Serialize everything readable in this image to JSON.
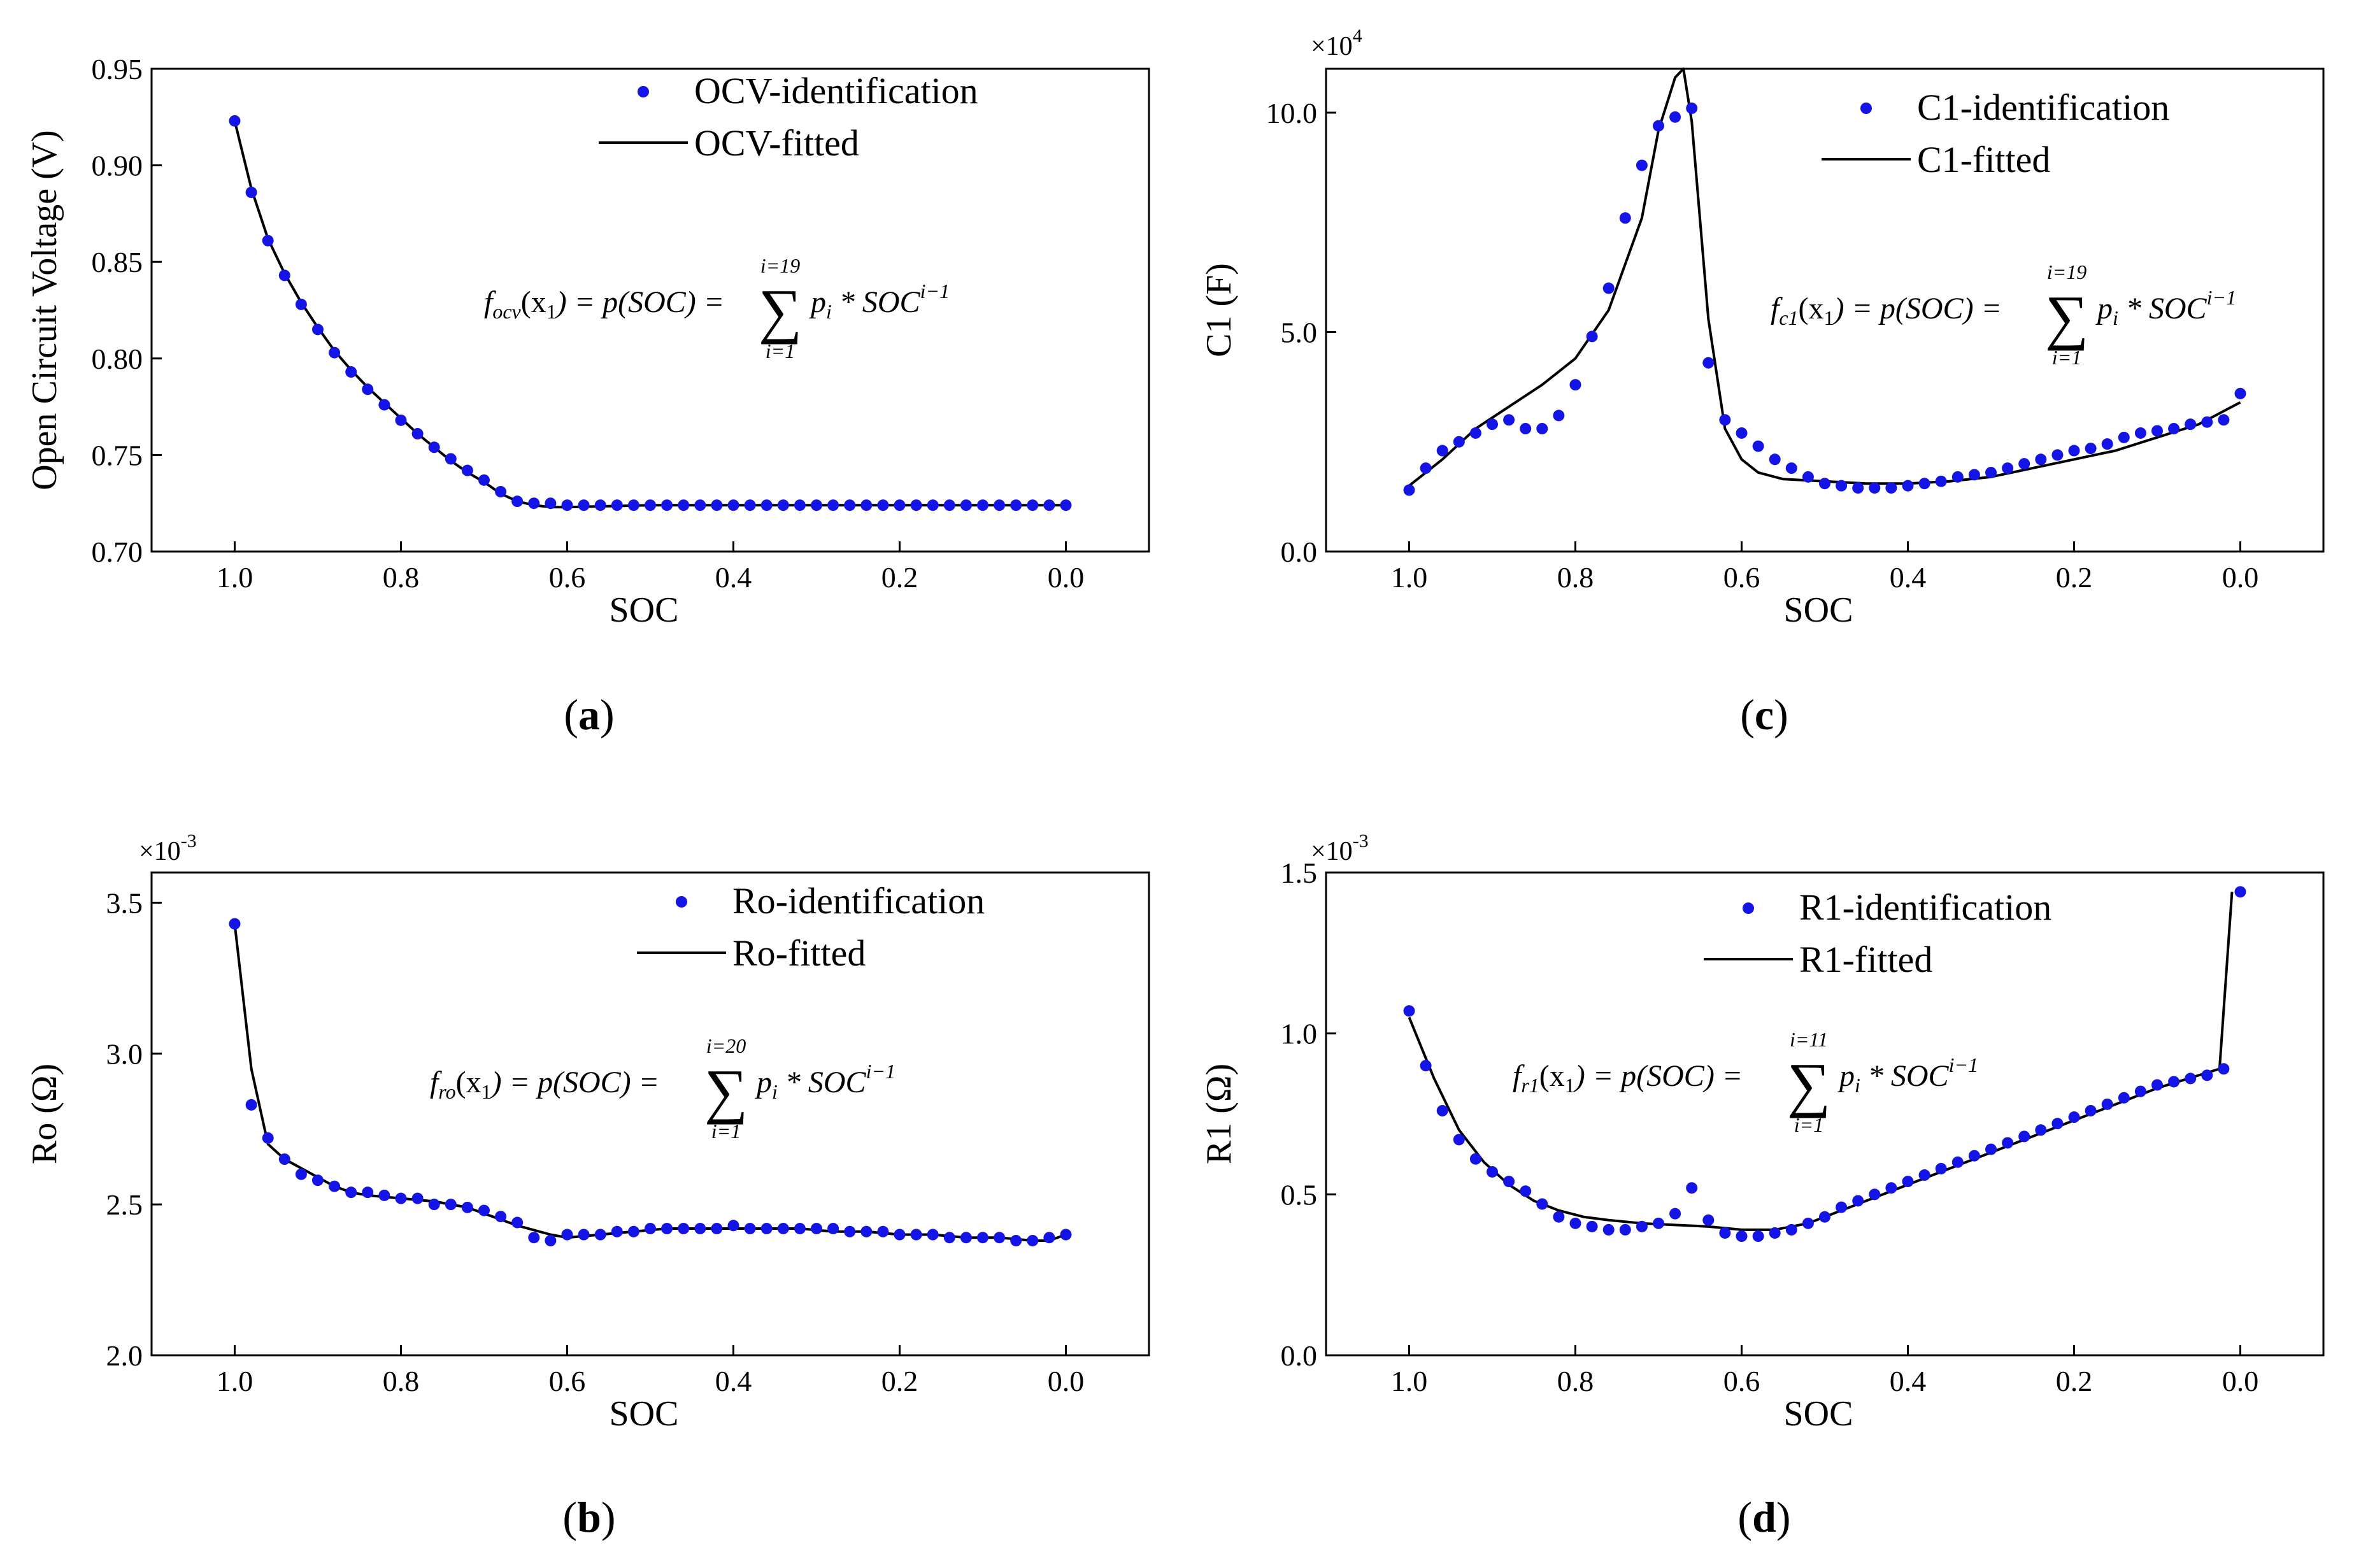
{
  "chart_data": [
    {
      "id": "a",
      "type": "scatter",
      "panel_label": "a",
      "xlabel": "SOC",
      "ylabel": "Open Circuit Voltage (V)",
      "xlim": [
        1.1,
        -0.1
      ],
      "ylim": [
        0.7,
        0.95
      ],
      "xticks": [
        1.0,
        0.8,
        0.6,
        0.4,
        0.2,
        0.0
      ],
      "xtick_labels": [
        "1.0",
        "0.8",
        "0.6",
        "0.4",
        "0.2",
        "0.0"
      ],
      "yticks": [
        0.7,
        0.75,
        0.8,
        0.85,
        0.9,
        0.95
      ],
      "ytick_labels": [
        "0.70",
        "0.75",
        "0.80",
        "0.85",
        "0.90",
        "0.95"
      ],
      "multiplier": "",
      "legend": [
        "OCV-identification",
        "OCV-fitted"
      ],
      "equation": {
        "f": "f",
        "sub": "ocv",
        "arg": "(x",
        "argsub": "1",
        "rhs": ") = p(SOC) =",
        "top": "i=19",
        "bottom": "i=1",
        "term": "p",
        "termsub": "i",
        "tail": " * SOC",
        "exp": "i−1"
      },
      "series": [
        {
          "name": "OCV-identification",
          "kind": "points",
          "x": [
            1.0,
            0.98,
            0.96,
            0.94,
            0.92,
            0.9,
            0.88,
            0.86,
            0.84,
            0.82,
            0.8,
            0.78,
            0.76,
            0.74,
            0.72,
            0.7,
            0.68,
            0.66,
            0.64,
            0.62,
            0.6,
            0.58,
            0.56,
            0.54,
            0.52,
            0.5,
            0.48,
            0.46,
            0.44,
            0.42,
            0.4,
            0.38,
            0.36,
            0.34,
            0.32,
            0.3,
            0.28,
            0.26,
            0.24,
            0.22,
            0.2,
            0.18,
            0.16,
            0.14,
            0.12,
            0.1,
            0.08,
            0.06,
            0.04,
            0.02,
            0.0
          ],
          "y": [
            0.923,
            0.886,
            0.861,
            0.843,
            0.828,
            0.815,
            0.803,
            0.793,
            0.784,
            0.776,
            0.768,
            0.761,
            0.754,
            0.748,
            0.742,
            0.737,
            0.731,
            0.726,
            0.725,
            0.725,
            0.724,
            0.724,
            0.724,
            0.724,
            0.724,
            0.724,
            0.724,
            0.724,
            0.724,
            0.724,
            0.724,
            0.724,
            0.724,
            0.724,
            0.724,
            0.724,
            0.724,
            0.724,
            0.724,
            0.724,
            0.724,
            0.724,
            0.724,
            0.724,
            0.724,
            0.724,
            0.724,
            0.724,
            0.724,
            0.724,
            0.724
          ]
        },
        {
          "name": "OCV-fitted",
          "kind": "line",
          "x": [
            1.0,
            0.98,
            0.96,
            0.94,
            0.92,
            0.9,
            0.88,
            0.86,
            0.84,
            0.82,
            0.8,
            0.78,
            0.76,
            0.74,
            0.72,
            0.7,
            0.68,
            0.66,
            0.64,
            0.62,
            0.6,
            0.5,
            0.4,
            0.3,
            0.2,
            0.1,
            0.0
          ],
          "y": [
            0.923,
            0.888,
            0.862,
            0.844,
            0.829,
            0.816,
            0.804,
            0.794,
            0.785,
            0.777,
            0.769,
            0.761,
            0.754,
            0.747,
            0.741,
            0.736,
            0.73,
            0.726,
            0.724,
            0.723,
            0.723,
            0.724,
            0.724,
            0.724,
            0.724,
            0.724,
            0.724
          ]
        }
      ]
    },
    {
      "id": "c",
      "type": "scatter",
      "panel_label": "c",
      "xlabel": "SOC",
      "ylabel": "C1 (F)",
      "xlim": [
        1.1,
        -0.1
      ],
      "ylim": [
        0,
        11
      ],
      "xticks": [
        1.0,
        0.8,
        0.6,
        0.4,
        0.2,
        0.0
      ],
      "xtick_labels": [
        "1.0",
        "0.8",
        "0.6",
        "0.4",
        "0.2",
        "0.0"
      ],
      "yticks": [
        0,
        5,
        10
      ],
      "ytick_labels": [
        "0.0",
        "5.0",
        "10.0"
      ],
      "multiplier": "×10",
      "multiplier_exp": "4",
      "legend": [
        "C1-identification",
        "C1-fitted"
      ],
      "equation": {
        "f": "f",
        "sub": "c1",
        "arg": "(x",
        "argsub": "1",
        "rhs": ") = p(SOC) =",
        "top": "i=19",
        "bottom": "i=1",
        "term": "p",
        "termsub": "i",
        "tail": " * SOC",
        "exp": "i−1"
      },
      "series": [
        {
          "name": "C1-identification",
          "kind": "points",
          "x": [
            1.0,
            0.98,
            0.96,
            0.94,
            0.92,
            0.9,
            0.88,
            0.86,
            0.84,
            0.82,
            0.8,
            0.78,
            0.76,
            0.74,
            0.72,
            0.7,
            0.68,
            0.66,
            0.64,
            0.62,
            0.6,
            0.58,
            0.56,
            0.54,
            0.52,
            0.5,
            0.48,
            0.46,
            0.44,
            0.42,
            0.4,
            0.38,
            0.36,
            0.34,
            0.32,
            0.3,
            0.28,
            0.26,
            0.24,
            0.22,
            0.2,
            0.18,
            0.16,
            0.14,
            0.12,
            0.1,
            0.08,
            0.06,
            0.04,
            0.02,
            0.0
          ],
          "y": [
            1.4,
            1.9,
            2.3,
            2.5,
            2.7,
            2.9,
            3.0,
            2.8,
            2.8,
            3.1,
            3.8,
            4.9,
            6.0,
            7.6,
            8.8,
            9.7,
            9.9,
            10.1,
            4.3,
            3.0,
            2.7,
            2.4,
            2.1,
            1.9,
            1.7,
            1.55,
            1.5,
            1.45,
            1.45,
            1.45,
            1.5,
            1.55,
            1.6,
            1.7,
            1.75,
            1.8,
            1.9,
            2.0,
            2.1,
            2.2,
            2.3,
            2.35,
            2.45,
            2.6,
            2.7,
            2.75,
            2.8,
            2.9,
            2.95,
            3.0,
            3.6
          ]
        },
        {
          "name": "C1-fitted",
          "kind": "line",
          "x": [
            1.0,
            0.96,
            0.92,
            0.88,
            0.84,
            0.8,
            0.76,
            0.72,
            0.7,
            0.68,
            0.67,
            0.66,
            0.64,
            0.62,
            0.6,
            0.58,
            0.55,
            0.5,
            0.45,
            0.4,
            0.35,
            0.3,
            0.25,
            0.2,
            0.15,
            0.1,
            0.05,
            0.02,
            0.0
          ],
          "y": [
            1.5,
            2.1,
            2.8,
            3.3,
            3.8,
            4.4,
            5.5,
            7.6,
            9.6,
            10.8,
            11.0,
            9.8,
            5.3,
            2.8,
            2.1,
            1.8,
            1.65,
            1.6,
            1.55,
            1.55,
            1.6,
            1.7,
            1.9,
            2.1,
            2.3,
            2.6,
            2.9,
            3.2,
            3.4
          ]
        }
      ]
    },
    {
      "id": "b",
      "type": "scatter",
      "panel_label": "b",
      "xlabel": "SOC",
      "ylabel": "Ro (Ω)",
      "xlim": [
        1.1,
        -0.1
      ],
      "ylim": [
        2.0,
        3.6
      ],
      "xticks": [
        1.0,
        0.8,
        0.6,
        0.4,
        0.2,
        0.0
      ],
      "xtick_labels": [
        "1.0",
        "0.8",
        "0.6",
        "0.4",
        "0.2",
        "0.0"
      ],
      "yticks": [
        2.0,
        2.5,
        3.0,
        3.5
      ],
      "ytick_labels": [
        "2.0",
        "2.5",
        "3.0",
        "3.5"
      ],
      "multiplier": "×10",
      "multiplier_exp": "-3",
      "legend": [
        "Ro-identification",
        "Ro-fitted"
      ],
      "equation": {
        "f": "f",
        "sub": "ro",
        "arg": "(x",
        "argsub": "1",
        "rhs": ") = p(SOC) =",
        "top": "i=20",
        "bottom": "i=1",
        "term": "p",
        "termsub": "i",
        "tail": " * SOC",
        "exp": "i−1"
      },
      "series": [
        {
          "name": "Ro-identification",
          "kind": "points",
          "x": [
            1.0,
            0.98,
            0.96,
            0.94,
            0.92,
            0.9,
            0.88,
            0.86,
            0.84,
            0.82,
            0.8,
            0.78,
            0.76,
            0.74,
            0.72,
            0.7,
            0.68,
            0.66,
            0.64,
            0.62,
            0.6,
            0.58,
            0.56,
            0.54,
            0.52,
            0.5,
            0.48,
            0.46,
            0.44,
            0.42,
            0.4,
            0.38,
            0.36,
            0.34,
            0.32,
            0.3,
            0.28,
            0.26,
            0.24,
            0.22,
            0.2,
            0.18,
            0.16,
            0.14,
            0.12,
            0.1,
            0.08,
            0.06,
            0.04,
            0.02,
            0.0
          ],
          "y": [
            3.43,
            2.83,
            2.72,
            2.65,
            2.6,
            2.58,
            2.56,
            2.54,
            2.54,
            2.53,
            2.52,
            2.52,
            2.5,
            2.5,
            2.49,
            2.48,
            2.46,
            2.44,
            2.39,
            2.38,
            2.4,
            2.4,
            2.4,
            2.41,
            2.41,
            2.42,
            2.42,
            2.42,
            2.42,
            2.42,
            2.43,
            2.42,
            2.42,
            2.42,
            2.42,
            2.42,
            2.42,
            2.41,
            2.41,
            2.41,
            2.4,
            2.4,
            2.4,
            2.39,
            2.39,
            2.39,
            2.39,
            2.38,
            2.38,
            2.39,
            2.4
          ]
        },
        {
          "name": "Ro-fitted",
          "kind": "line",
          "x": [
            1.0,
            0.98,
            0.96,
            0.94,
            0.92,
            0.9,
            0.88,
            0.86,
            0.84,
            0.8,
            0.76,
            0.72,
            0.7,
            0.66,
            0.62,
            0.6,
            0.56,
            0.52,
            0.48,
            0.44,
            0.4,
            0.36,
            0.32,
            0.28,
            0.24,
            0.2,
            0.16,
            0.12,
            0.08,
            0.04,
            0.02,
            0.0
          ],
          "y": [
            3.43,
            2.95,
            2.7,
            2.65,
            2.62,
            2.59,
            2.56,
            2.54,
            2.53,
            2.52,
            2.51,
            2.49,
            2.47,
            2.43,
            2.4,
            2.39,
            2.4,
            2.41,
            2.42,
            2.42,
            2.42,
            2.42,
            2.42,
            2.41,
            2.41,
            2.4,
            2.4,
            2.39,
            2.39,
            2.38,
            2.38,
            2.4
          ]
        }
      ]
    },
    {
      "id": "d",
      "type": "scatter",
      "panel_label": "d",
      "xlabel": "SOC",
      "ylabel": "R1 (Ω)",
      "xlim": [
        1.1,
        -0.1
      ],
      "ylim": [
        0,
        1.5
      ],
      "xticks": [
        1.0,
        0.8,
        0.6,
        0.4,
        0.2,
        0.0
      ],
      "xtick_labels": [
        "1.0",
        "0.8",
        "0.6",
        "0.4",
        "0.2",
        "0.0"
      ],
      "yticks": [
        0,
        0.5,
        1.0,
        1.5
      ],
      "ytick_labels": [
        "0.0",
        "0.5",
        "1.0",
        "1.5"
      ],
      "multiplier": "×10",
      "multiplier_exp": "-3",
      "legend": [
        "R1-identification",
        "R1-fitted"
      ],
      "equation": {
        "f": "f",
        "sub": "r1",
        "arg": "(x",
        "argsub": "1",
        "rhs": ") = p(SOC) =",
        "top": "i=11",
        "bottom": "i=1",
        "term": "p",
        "termsub": "i",
        "tail": " * SOC",
        "exp": "i−1"
      },
      "series": [
        {
          "name": "R1-identification",
          "kind": "points",
          "x": [
            1.0,
            0.98,
            0.96,
            0.94,
            0.92,
            0.9,
            0.88,
            0.86,
            0.84,
            0.82,
            0.8,
            0.78,
            0.76,
            0.74,
            0.72,
            0.7,
            0.68,
            0.66,
            0.64,
            0.62,
            0.6,
            0.58,
            0.56,
            0.54,
            0.52,
            0.5,
            0.48,
            0.46,
            0.44,
            0.42,
            0.4,
            0.38,
            0.36,
            0.34,
            0.32,
            0.3,
            0.28,
            0.26,
            0.24,
            0.22,
            0.2,
            0.18,
            0.16,
            0.14,
            0.12,
            0.1,
            0.08,
            0.06,
            0.04,
            0.02,
            0.0
          ],
          "y": [
            1.07,
            0.9,
            0.76,
            0.67,
            0.61,
            0.57,
            0.54,
            0.51,
            0.47,
            0.43,
            0.41,
            0.4,
            0.39,
            0.39,
            0.4,
            0.41,
            0.44,
            0.52,
            0.42,
            0.38,
            0.37,
            0.37,
            0.38,
            0.39,
            0.41,
            0.43,
            0.46,
            0.48,
            0.5,
            0.52,
            0.54,
            0.56,
            0.58,
            0.6,
            0.62,
            0.64,
            0.66,
            0.68,
            0.7,
            0.72,
            0.74,
            0.76,
            0.78,
            0.8,
            0.82,
            0.84,
            0.85,
            0.86,
            0.87,
            0.89,
            1.44
          ]
        },
        {
          "name": "R1-fitted",
          "kind": "line",
          "x": [
            1.0,
            0.97,
            0.94,
            0.91,
            0.88,
            0.85,
            0.82,
            0.79,
            0.76,
            0.72,
            0.68,
            0.64,
            0.6,
            0.56,
            0.52,
            0.48,
            0.44,
            0.4,
            0.35,
            0.3,
            0.25,
            0.2,
            0.15,
            0.1,
            0.05,
            0.025,
            0.01
          ],
          "y": [
            1.05,
            0.86,
            0.7,
            0.6,
            0.53,
            0.48,
            0.45,
            0.43,
            0.42,
            0.41,
            0.405,
            0.4,
            0.39,
            0.39,
            0.41,
            0.45,
            0.49,
            0.53,
            0.58,
            0.63,
            0.68,
            0.73,
            0.78,
            0.83,
            0.87,
            0.89,
            1.44
          ]
        }
      ]
    }
  ],
  "colors": {
    "points": "#1414e6",
    "line": "#000000",
    "axis": "#000000"
  }
}
